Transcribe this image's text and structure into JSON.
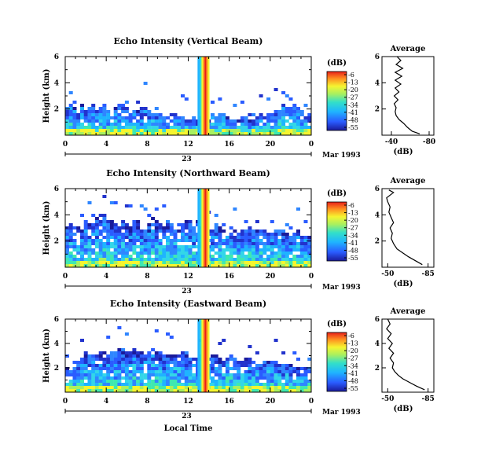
{
  "chart_data": [
    {
      "type": "heatmap",
      "title": "Echo Intensity (Vertical Beam)",
      "ylabel": "Height (km)",
      "xlim": [
        0,
        24
      ],
      "ylim": [
        0,
        6
      ],
      "x_ticks": [
        "0",
        "4",
        "8",
        "12",
        "16",
        "20",
        "0"
      ],
      "y_ticks": [
        "2",
        "4",
        "6"
      ],
      "date_tick": "23",
      "date_label": "Mar 1993",
      "colorbar": {
        "unit": "(dB)",
        "ticks": [
          "-6",
          "-13",
          "-20",
          "-27",
          "-34",
          "-41",
          "-48",
          "-55"
        ]
      },
      "average_profile": {
        "title": "Average",
        "xlabel": "(dB)",
        "x_ticks": [
          "-40",
          "-80"
        ],
        "y_ticks": [
          "2",
          "4",
          "6"
        ],
        "xlim": [
          -30,
          -85
        ],
        "points": [
          [
            -70,
            0.1
          ],
          [
            -62,
            0.3
          ],
          [
            -57,
            0.6
          ],
          [
            -53,
            0.9
          ],
          [
            -48,
            1.2
          ],
          [
            -45,
            1.5
          ],
          [
            -44,
            1.8
          ],
          [
            -45,
            2.1
          ],
          [
            -43,
            2.4
          ],
          [
            -47,
            2.7
          ],
          [
            -43,
            3.0
          ],
          [
            -48,
            3.3
          ],
          [
            -44,
            3.6
          ],
          [
            -50,
            3.9
          ],
          [
            -44,
            4.2
          ],
          [
            -51,
            4.5
          ],
          [
            -44,
            4.8
          ],
          [
            -52,
            5.1
          ],
          [
            -45,
            5.4
          ],
          [
            -50,
            5.7
          ],
          [
            -46,
            6.0
          ]
        ]
      }
    },
    {
      "type": "heatmap",
      "title": "Echo Intensity (Northward Beam)",
      "ylabel": "Height (km)",
      "xlim": [
        0,
        24
      ],
      "ylim": [
        0,
        6
      ],
      "x_ticks": [
        "0",
        "4",
        "8",
        "12",
        "16",
        "20",
        "0"
      ],
      "y_ticks": [
        "2",
        "4",
        "6"
      ],
      "date_tick": "23",
      "date_label": "Mar 1993",
      "colorbar": {
        "unit": "(dB)",
        "ticks": [
          "-6",
          "-13",
          "-20",
          "-27",
          "-34",
          "-41",
          "-48",
          "-55"
        ]
      },
      "average_profile": {
        "title": "Average",
        "xlabel": "(dB)",
        "x_ticks": [
          "-50",
          "-85"
        ],
        "y_ticks": [
          "2",
          "4",
          "6"
        ],
        "xlim": [
          -45,
          -90
        ],
        "points": [
          [
            -80,
            0.2
          ],
          [
            -74,
            0.5
          ],
          [
            -68,
            0.8
          ],
          [
            -63,
            1.1
          ],
          [
            -58,
            1.4
          ],
          [
            -55,
            1.8
          ],
          [
            -53,
            2.2
          ],
          [
            -54,
            2.6
          ],
          [
            -52,
            3.0
          ],
          [
            -55,
            3.4
          ],
          [
            -53,
            3.8
          ],
          [
            -51,
            4.2
          ],
          [
            -52,
            4.6
          ],
          [
            -50,
            5.0
          ],
          [
            -49,
            5.3
          ],
          [
            -52,
            5.5
          ],
          [
            -55,
            5.7
          ],
          [
            -51,
            5.9
          ]
        ]
      }
    },
    {
      "type": "heatmap",
      "title": "Echo Intensity (Eastward Beam)",
      "ylabel": "Height (km)",
      "xlabel": "Local Time",
      "xlim": [
        0,
        24
      ],
      "ylim": [
        0,
        6
      ],
      "x_ticks": [
        "0",
        "4",
        "8",
        "12",
        "16",
        "20",
        "0"
      ],
      "y_ticks": [
        "2",
        "4",
        "6"
      ],
      "date_tick": "23",
      "date_label": "Mar 1993",
      "colorbar": {
        "unit": "(dB)",
        "ticks": [
          "-6",
          "-13",
          "-20",
          "-27",
          "-34",
          "-41",
          "-48",
          "-55"
        ]
      },
      "average_profile": {
        "title": "Average",
        "xlabel": "(dB)",
        "x_ticks": [
          "-50",
          "-85"
        ],
        "y_ticks": [
          "2",
          "4",
          "6"
        ],
        "xlim": [
          -45,
          -90
        ],
        "points": [
          [
            -82,
            0.2
          ],
          [
            -75,
            0.5
          ],
          [
            -69,
            0.8
          ],
          [
            -63,
            1.1
          ],
          [
            -59,
            1.4
          ],
          [
            -56,
            1.7
          ],
          [
            -54,
            2.0
          ],
          [
            -55,
            2.4
          ],
          [
            -52,
            2.8
          ],
          [
            -55,
            3.2
          ],
          [
            -51,
            3.6
          ],
          [
            -54,
            4.0
          ],
          [
            -50,
            4.4
          ],
          [
            -53,
            4.8
          ],
          [
            -49,
            5.2
          ],
          [
            -52,
            5.6
          ],
          [
            -50,
            6.0
          ]
        ]
      }
    }
  ]
}
